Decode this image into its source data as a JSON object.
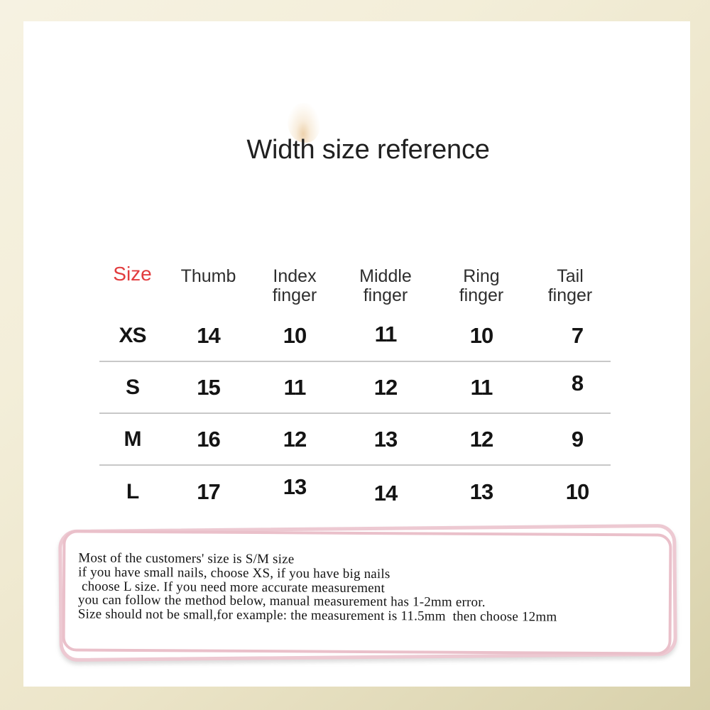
{
  "page": {
    "title": "Width size reference"
  },
  "table": {
    "header": {
      "size_label": "Size",
      "columns": [
        {
          "line1": "Thumb",
          "line2": ""
        },
        {
          "line1": "Index",
          "line2": "finger"
        },
        {
          "line1": "Middle",
          "line2": "finger"
        },
        {
          "line1": "Ring",
          "line2": "finger"
        },
        {
          "line1": "Tail",
          "line2": "finger"
        }
      ]
    },
    "rows": [
      {
        "size": "XS",
        "values": [
          "14",
          "10",
          "11",
          "10",
          "7"
        ]
      },
      {
        "size": "S",
        "values": [
          "15",
          "11",
          "12",
          "11",
          "8"
        ]
      },
      {
        "size": "M",
        "values": [
          "16",
          "12",
          "13",
          "12",
          "9"
        ]
      },
      {
        "size": "L",
        "values": [
          "17",
          "13",
          "14",
          "13",
          "10"
        ]
      }
    ]
  },
  "note": {
    "text": "Most of the customers' size is S/M size\nif you have small nails, choose XS, if you have big nails\n choose L size. If you need more accurate measurement\nyou can follow the method below, manual measurement has 1-2mm error.\nSize should not be small,for example: the measurement is 11.5mm  then choose 12mm"
  },
  "colors": {
    "accent_red": "#e23c3e",
    "note_border_pink": "#eac0ca",
    "frame_cream": "#f3eed9",
    "frame_khaki": "#d8d1ab",
    "separator_gray": "#c8c8c8"
  }
}
